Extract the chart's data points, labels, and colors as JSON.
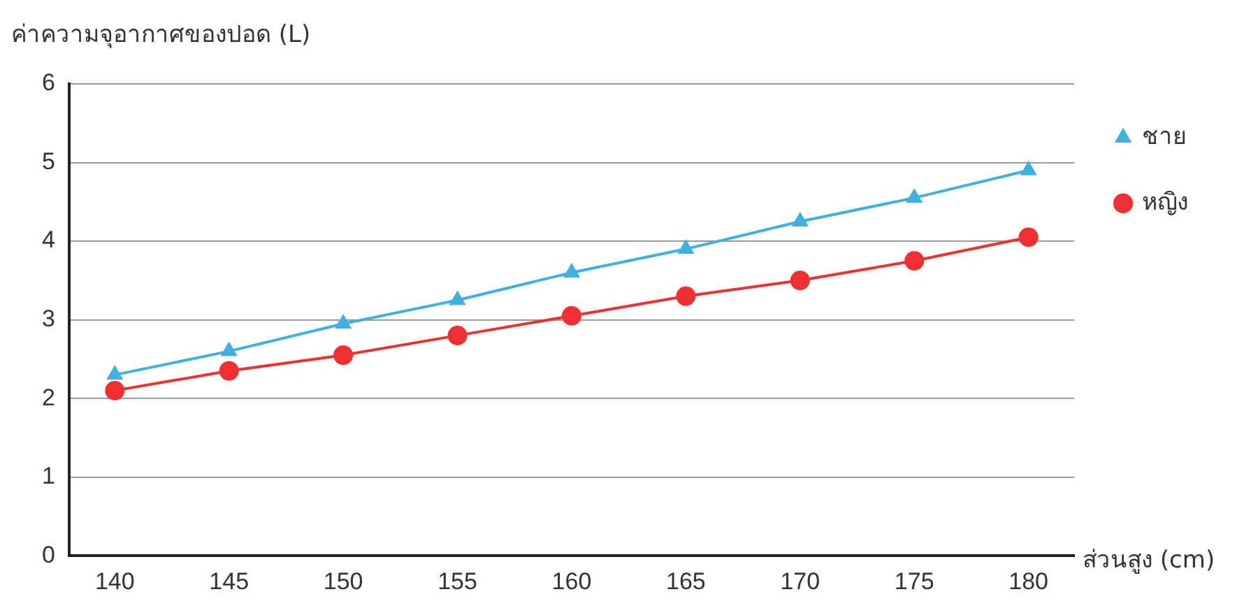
{
  "chart_data": {
    "type": "line",
    "ylabel": "ค่าความจุอากาศของปอด (L)",
    "xlabel": "ส่วนสูง (cm)",
    "x": [
      140,
      145,
      150,
      155,
      160,
      165,
      170,
      175,
      180
    ],
    "series": [
      {
        "name": "ชาย",
        "color": "#3fb0e0",
        "marker": "triangle",
        "values": [
          2.3,
          2.6,
          2.95,
          3.25,
          3.6,
          3.9,
          4.25,
          4.55,
          4.9
        ]
      },
      {
        "name": "หญิง",
        "color": "#f03030",
        "marker": "circle",
        "values": [
          2.1,
          2.35,
          2.55,
          2.8,
          3.05,
          3.3,
          3.5,
          3.75,
          4.05
        ]
      }
    ],
    "xlim": [
      138,
      182
    ],
    "xticks": [
      140,
      145,
      150,
      155,
      160,
      165,
      170,
      175,
      180
    ],
    "ylim": [
      0,
      6
    ],
    "yticks": [
      0,
      1,
      2,
      3,
      4,
      5,
      6
    ],
    "grid": "y",
    "legend": "top right"
  }
}
